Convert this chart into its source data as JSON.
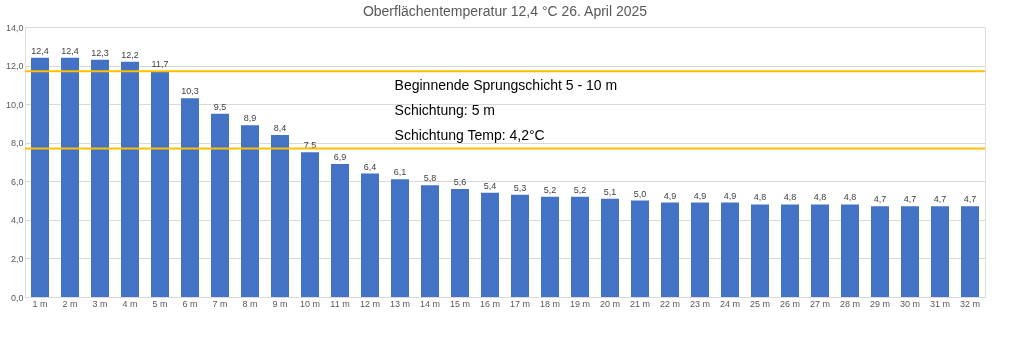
{
  "chart_data": {
    "type": "bar",
    "title": "Oberflächentemperatur 12,4 °C 26. April 2025",
    "categories": [
      "1 m",
      "2 m",
      "3 m",
      "4 m",
      "5 m",
      "6 m",
      "7 m",
      "8 m",
      "9 m",
      "10 m",
      "11 m",
      "12 m",
      "13 m",
      "14 m",
      "15 m",
      "16 m",
      "17 m",
      "18 m",
      "19 m",
      "20 m",
      "21 m",
      "22 m",
      "23 m",
      "24 m",
      "25 m",
      "26 m",
      "27 m",
      "28 m",
      "29 m",
      "30 m",
      "31 m",
      "32 m"
    ],
    "values": [
      12.4,
      12.4,
      12.3,
      12.2,
      11.7,
      10.3,
      9.5,
      8.9,
      8.4,
      7.5,
      6.9,
      6.4,
      6.1,
      5.8,
      5.6,
      5.4,
      5.3,
      5.2,
      5.2,
      5.1,
      5.0,
      4.9,
      4.9,
      4.9,
      4.8,
      4.8,
      4.8,
      4.8,
      4.7,
      4.7,
      4.7,
      4.7
    ],
    "value_labels": [
      "12,4",
      "12,4",
      "12,3",
      "12,2",
      "11,7",
      "10,3",
      "9,5",
      "8,9",
      "8,4",
      "7,5",
      "6,9",
      "6,4",
      "6,1",
      "5,8",
      "5,6",
      "5,4",
      "5,3",
      "5,2",
      "5,2",
      "5,1",
      "5,0",
      "4,9",
      "4,9",
      "4,9",
      "4,8",
      "4,8",
      "4,8",
      "4,8",
      "4,7",
      "4,7",
      "4,7",
      "4,7"
    ],
    "color": "#4472c4",
    "ylim": [
      0,
      14
    ],
    "yticks": [
      {
        "value": 0,
        "label": "0,0"
      },
      {
        "value": 2,
        "label": "2,0"
      },
      {
        "value": 4,
        "label": "4,0"
      },
      {
        "value": 6,
        "label": "6,0"
      },
      {
        "value": 8,
        "label": "8,0"
      },
      {
        "value": 10,
        "label": "10,0"
      },
      {
        "value": 12,
        "label": "12,0"
      },
      {
        "value": 14,
        "label": "14,0"
      }
    ],
    "grid": "y",
    "ref_lines": [
      {
        "axis": "y",
        "value": 11.7,
        "color": "#ffc000"
      },
      {
        "axis": "y",
        "value": 7.7,
        "color": "#ffc000"
      }
    ],
    "annotations": [
      "Beginnende  Sprungschicht  5 - 10 m",
      "Schichtung: 5 m",
      "Schichtung Temp: 4,2°C"
    ]
  }
}
